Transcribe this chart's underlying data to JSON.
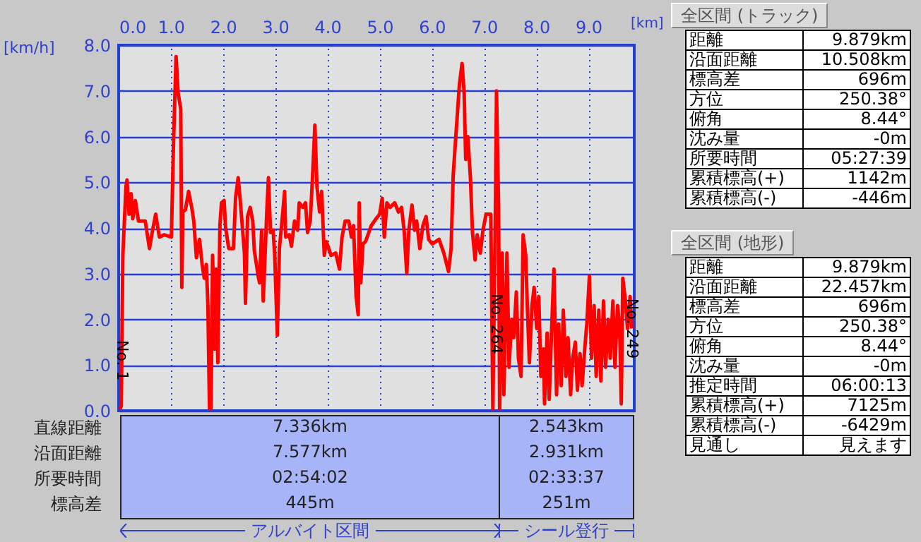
{
  "chart_data": [
    {
      "type": "line",
      "xlabel": "[km]",
      "ylabel": "[km/h]",
      "x": [
        0.02,
        0.05,
        0.08,
        0.14,
        0.16,
        0.2,
        0.24,
        0.27,
        0.32,
        0.38,
        0.51,
        0.59,
        0.65,
        0.71,
        0.78,
        0.87,
        1.01,
        1.05,
        1.1,
        1.14,
        1.19,
        1.21,
        1.23,
        1.28,
        1.34,
        1.4,
        1.44,
        1.49,
        1.55,
        1.6,
        1.64,
        1.68,
        1.71,
        1.74,
        1.77,
        1.8,
        1.84,
        1.87,
        1.9,
        1.94,
        1.97,
        2.02,
        2.05,
        2.11,
        2.2,
        2.24,
        2.29,
        2.33,
        2.41,
        2.43,
        2.47,
        2.52,
        2.57,
        2.6,
        2.68,
        2.7,
        2.74,
        2.77,
        2.84,
        2.87,
        2.91,
        2.96,
        2.99,
        3.04,
        3.08,
        3.13,
        3.18,
        3.2,
        3.27,
        3.31,
        3.37,
        3.43,
        3.46,
        3.53,
        3.58,
        3.62,
        3.67,
        3.71,
        3.76,
        3.8,
        3.85,
        3.89,
        3.94,
        3.98,
        4.07,
        4.16,
        4.23,
        4.28,
        4.34,
        4.41,
        4.46,
        4.5,
        4.55,
        4.59,
        4.61,
        4.64,
        4.68,
        4.73,
        4.84,
        4.93,
        5.0,
        5.05,
        5.09,
        5.14,
        5.2,
        5.29,
        5.36,
        5.42,
        5.47,
        5.52,
        5.56,
        5.62,
        5.67,
        5.71,
        5.77,
        5.83,
        5.89,
        5.94,
        6.01,
        6.14,
        6.23,
        6.32,
        6.37,
        6.41,
        6.46,
        6.53,
        6.58,
        6.62,
        6.65,
        6.69,
        6.74,
        6.78,
        6.83,
        6.87,
        6.93,
        6.98,
        7.04,
        7.13,
        7.17,
        7.22,
        7.24,
        7.28,
        7.3,
        7.35,
        7.38,
        7.44,
        7.48,
        7.53,
        7.57,
        7.62,
        7.66,
        7.71,
        7.75,
        7.8,
        7.83,
        7.87,
        7.92,
        7.96,
        8.01,
        8.05,
        8.09,
        8.14,
        8.16,
        8.21,
        8.25,
        8.3,
        8.34,
        8.39,
        8.43,
        8.48,
        8.52,
        8.57,
        8.61,
        8.66,
        8.7,
        8.75,
        8.79,
        8.84,
        8.88,
        8.93,
        8.97,
        9.02,
        9.06,
        9.11,
        9.15,
        9.2,
        9.24,
        9.29,
        9.33,
        9.38,
        9.42,
        9.47,
        9.51,
        9.56,
        9.6,
        9.63,
        9.66,
        9.71,
        9.75,
        9.8,
        9.83
      ],
      "series": [
        {
          "color": "#ff0000",
          "values": [
            0.03,
            0.1,
            3.4,
            4.9,
            5.05,
            4.3,
            4.75,
            4.2,
            4.6,
            4.15,
            4.15,
            3.55,
            3.95,
            4.3,
            3.8,
            3.85,
            3.8,
            5.8,
            7.75,
            6.95,
            6.6,
            2.7,
            4.35,
            4.4,
            4.8,
            4.45,
            4.15,
            3.35,
            3.75,
            3.2,
            2.9,
            3.2,
            2.3,
            0.05,
            0.05,
            3.4,
            1.35,
            3.1,
            1.05,
            4.05,
            4.55,
            4.6,
            4.0,
            3.55,
            3.55,
            4.65,
            5.1,
            4.6,
            3.45,
            2.35,
            4.25,
            4.45,
            4.15,
            3.5,
            2.9,
            2.8,
            3.95,
            2.4,
            4.4,
            5.1,
            3.9,
            3.95,
            3.4,
            1.65,
            3.55,
            4.15,
            4.8,
            3.8,
            3.85,
            3.6,
            4.15,
            3.95,
            4.55,
            4.45,
            4.55,
            3.9,
            4.15,
            5.0,
            6.25,
            4.9,
            4.35,
            4.8,
            3.4,
            3.7,
            3.4,
            3.45,
            3.1,
            3.8,
            4.15,
            4.15,
            3.8,
            4.05,
            2.5,
            2.1,
            4.55,
            2.8,
            3.65,
            3.7,
            4.05,
            4.2,
            4.3,
            4.65,
            3.8,
            4.55,
            4.45,
            4.55,
            4.35,
            4.45,
            3.95,
            3.0,
            3.95,
            4.5,
            3.95,
            4.15,
            3.55,
            4.05,
            4.25,
            3.75,
            3.65,
            3.75,
            3.45,
            3.05,
            3.55,
            5.15,
            6.0,
            7.15,
            7.6,
            6.95,
            5.5,
            6.0,
            5.1,
            3.9,
            3.3,
            3.85,
            3.45,
            3.95,
            4.3,
            4.3,
            0.03,
            4.55,
            7.0,
            4.45,
            0.03,
            3.45,
            0.35,
            3.45,
            0.95,
            2.0,
            1.6,
            2.6,
            1.15,
            0.75,
            3.85,
            3.4,
            2.3,
            1.05,
            2.3,
            2.7,
            1.8,
            2.5,
            0.75,
            1.35,
            0.15,
            1.7,
            0.25,
            1.9,
            3.1,
            0.35,
            1.9,
            0.55,
            2.2,
            0.75,
            1.6,
            0.35,
            1.15,
            1.5,
            0.45,
            1.25,
            0.55,
            1.35,
            1.9,
            2.95,
            1.15,
            2.3,
            0.75,
            2.2,
            0.65,
            2.4,
            0.95,
            2.0,
            1.15,
            2.4,
            0.95,
            2.3,
            1.8,
            0.15,
            2.9,
            2.4,
            1.8,
            2.5,
            1.8
          ]
        }
      ],
      "xlim": [
        0,
        9.879
      ],
      "xticks": [
        {
          "value": 0,
          "label": "0.0"
        },
        {
          "value": 1,
          "label": "1.0"
        },
        {
          "value": 2,
          "label": "2.0"
        },
        {
          "value": 3,
          "label": "3.0"
        },
        {
          "value": 4,
          "label": "4.0"
        },
        {
          "value": 5,
          "label": "5.0"
        },
        {
          "value": 6,
          "label": "6.0"
        },
        {
          "value": 7,
          "label": "7.0"
        },
        {
          "value": 8,
          "label": "8.0"
        },
        {
          "value": 9,
          "label": "9.0"
        }
      ],
      "ylim": [
        0,
        8
      ],
      "yticks": [
        {
          "value": 0,
          "label": "0.0"
        },
        {
          "value": 1,
          "label": "1.0"
        },
        {
          "value": 2,
          "label": "2.0"
        },
        {
          "value": 3,
          "label": "3.0"
        },
        {
          "value": 4,
          "label": "4.0"
        },
        {
          "value": 5,
          "label": "5.0"
        },
        {
          "value": 6,
          "label": "6.0"
        },
        {
          "value": 7,
          "label": "7.0"
        },
        {
          "value": 8,
          "label": "8.0"
        }
      ],
      "grid": true,
      "annotations": [
        {
          "text": "No. 1",
          "x": 0.05,
          "y": 1.1
        },
        {
          "text": "No. 264",
          "x": 7.22,
          "y": 1.9
        },
        {
          "text": "No. 249",
          "x": 9.83,
          "y": 1.8
        }
      ]
    },
    {
      "type": "other",
      "title": "アルバイト区間",
      "categories": [
        "直線距離",
        "沿面距離",
        "所要時間",
        "標高差"
      ],
      "value_labels": [
        "7.336km",
        "7.577km",
        "02:54:02",
        "445m"
      ]
    },
    {
      "type": "other",
      "title": "シール登行",
      "categories": [
        null,
        null,
        null,
        null
      ],
      "value_labels": [
        "2.543km",
        "2.931km",
        "02:33:37",
        "251m"
      ]
    },
    {
      "type": "other",
      "title": "全区間 (トラック)",
      "categories": [
        "距離",
        "沿面距離",
        "標高差",
        "方位",
        "俯角",
        "沈み量",
        "所要時間",
        "累積標高(+)",
        "累積標高(-)"
      ],
      "value_labels": [
        "9.879km",
        "10.508km",
        "696m",
        "250.38°",
        "8.44°",
        "-0m",
        "05:27:39",
        "1142m",
        "-446m"
      ]
    },
    {
      "type": "other",
      "title": "全区間 (地形)",
      "categories": [
        "距離",
        "沿面距離",
        "標高差",
        "方位",
        "俯角",
        "沈み量",
        "推定時間",
        "累積標高(+)",
        "累積標高(-)",
        "見通し"
      ],
      "value_labels": [
        "9.879km",
        "22.457km",
        "696m",
        "250.38°",
        "8.44°",
        "-0m",
        "06:00:13",
        "7125m",
        "-6429m",
        "見えます"
      ]
    }
  ]
}
